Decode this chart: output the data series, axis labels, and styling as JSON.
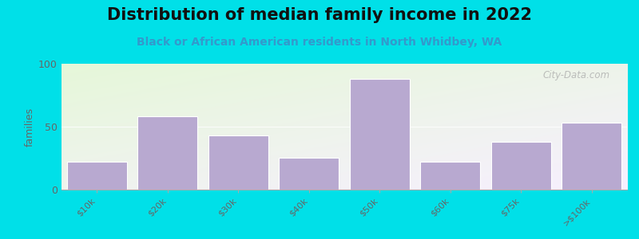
{
  "title": "Distribution of median family income in 2022",
  "subtitle": "Black or African American residents in North Whidbey, WA",
  "categories": [
    "$10k",
    "$20k",
    "$30k",
    "$40k",
    "$50k",
    "$60k",
    "$75k",
    ">$100k"
  ],
  "values": [
    22,
    58,
    43,
    25,
    88,
    22,
    38,
    53
  ],
  "bar_color": "#b8a9d0",
  "bar_edge_color": "#ffffff",
  "ylabel": "families",
  "ylim": [
    0,
    100
  ],
  "yticks": [
    0,
    50,
    100
  ],
  "background_outer": "#00e0e8",
  "title_fontsize": 15,
  "subtitle_fontsize": 10,
  "subtitle_color": "#3399cc",
  "watermark": "City-Data.com"
}
